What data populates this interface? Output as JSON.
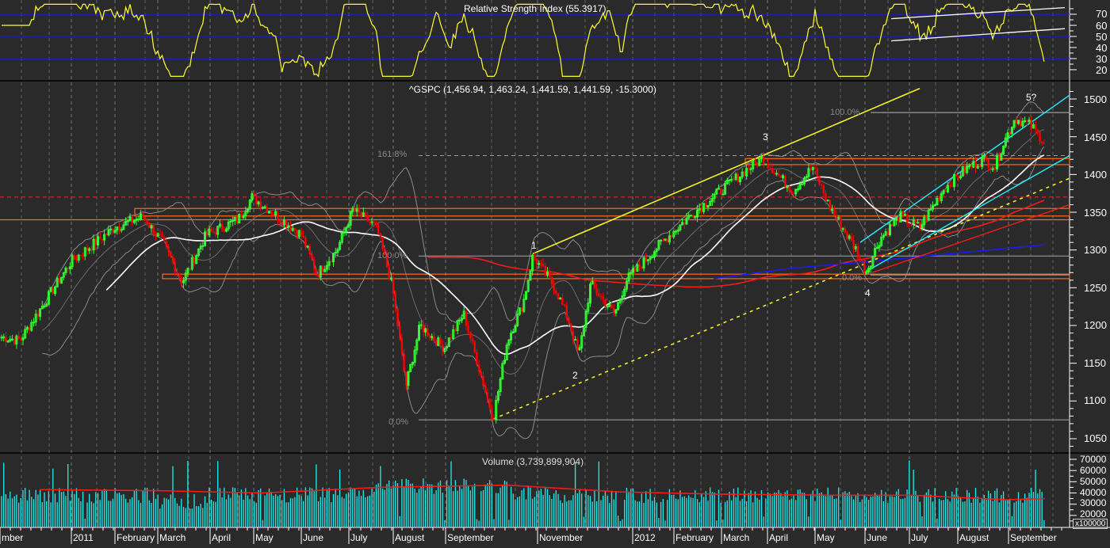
{
  "chart_data": [
    {
      "type": "line",
      "title": "Relative Strength Index (55.3917)",
      "indicator": "RSI",
      "current_value": 55.3917,
      "ylim": [
        12,
        80
      ],
      "yticks": [
        20,
        30,
        40,
        50,
        60,
        70
      ],
      "reference_lines": [
        {
          "value": 70,
          "color": "#0000cc"
        },
        {
          "value": 50,
          "color": "#0000cc"
        },
        {
          "value": 30,
          "color": "#0000cc"
        }
      ],
      "line_color": "#ffff33",
      "channel_lines_color": "#ffffff"
    },
    {
      "type": "candlestick",
      "title": "^GSPC (1,456.94, 1,463.24, 1,441.59, 1,441.59, -15.3000)",
      "symbol": "^GSPC",
      "last": {
        "open": 1456.94,
        "high": 1463.24,
        "low": 1441.59,
        "close": 1441.59,
        "change": -15.3
      },
      "ylim": [
        1030,
        1520
      ],
      "yticks": [
        1050,
        1100,
        1150,
        1200,
        1250,
        1300,
        1350,
        1400,
        1450,
        1500
      ],
      "up_color": "#33ff33",
      "down_color": "#ff0000",
      "overlays": [
        "Bollinger Bands (grey)",
        "50-day MA (white)",
        "200-day MA (red)",
        "blue MA"
      ],
      "fib_labels": [
        {
          "text": "161.8%",
          "price": 1425
        },
        {
          "text": "100.0%",
          "price": 1292
        },
        {
          "text": "0.0%",
          "price": 1075
        },
        {
          "text": "100.0%",
          "price": 1482
        },
        {
          "text": "0.0%",
          "price": 1267
        }
      ],
      "wave_labels": [
        {
          "text": "1",
          "approx_date": "Oct 2011",
          "price": 1300
        },
        {
          "text": "2",
          "approx_date": "Nov 2011",
          "price": 1155
        },
        {
          "text": "3",
          "approx_date": "Apr 2012",
          "price": 1430
        },
        {
          "text": "4",
          "approx_date": "Jun 2012",
          "price": 1260
        },
        {
          "text": "5?",
          "approx_date": "Sep 2012",
          "price": 1490
        }
      ],
      "horizontal_zones": [
        {
          "low": 1345,
          "high": 1355,
          "color": "#ff6a1a"
        },
        {
          "low": 1263,
          "high": 1268,
          "color": "#ff6a1a"
        },
        {
          "low": 1414,
          "high": 1421,
          "color": "#ff6a1a"
        },
        {
          "low": 1335,
          "high": 1340,
          "color": "#ff6a1a"
        }
      ],
      "dashed_lines": [
        {
          "price": 1370,
          "color": "#ff2222"
        },
        {
          "price": 1425,
          "color": "#999999"
        }
      ],
      "key_points": [
        {
          "date": "Feb 2011",
          "price": 1344
        },
        {
          "date": "Mar 2011",
          "price": 1256
        },
        {
          "date": "May 2011",
          "price": 1370
        },
        {
          "date": "Jun 2011",
          "price": 1265
        },
        {
          "date": "Jul 2011",
          "price": 1353
        },
        {
          "date": "Aug 2011",
          "price": 1101
        },
        {
          "date": "Oct 2011",
          "price": 1075
        },
        {
          "date": "Oct 2011",
          "price": 1292
        },
        {
          "date": "Nov 2011",
          "price": 1158
        },
        {
          "date": "Apr 2012",
          "price": 1422
        },
        {
          "date": "Jun 2012",
          "price": 1267
        },
        {
          "date": "Sep 2012",
          "price": 1474
        },
        {
          "date": "Sep 2012",
          "price": 1441.59
        }
      ]
    },
    {
      "type": "bar",
      "title": "Volume (3,739,899,904)",
      "current_value": 3739899904,
      "ylim": [
        10000,
        75000
      ],
      "yticks": [
        20000,
        30000,
        40000,
        50000,
        60000,
        70000
      ],
      "multiplier_label": "x100000",
      "bar_color": "#22eeee",
      "ma_color": "#ff0000"
    }
  ],
  "rsi": {
    "title": "Relative Strength Index (55.3917)",
    "ticks": [
      "70",
      "60",
      "50",
      "40",
      "30",
      "20"
    ]
  },
  "price": {
    "title": "^GSPC (1,456.94, 1,463.24, 1,441.59, 1,441.59, -15.3000)",
    "ticks": [
      "1500",
      "1450",
      "1400",
      "1350",
      "1300",
      "1250",
      "1200",
      "1150",
      "1100",
      "1050"
    ],
    "fib": [
      "161.8%",
      "100.0%",
      "0.0%",
      "100.0%",
      "0.0%"
    ],
    "waves": [
      "1",
      "2",
      "3",
      "4",
      "5?"
    ]
  },
  "volume": {
    "title": "Volume (3,739,899,904)",
    "ticks": [
      "70000",
      "60000",
      "50000",
      "40000",
      "30000",
      "20000"
    ],
    "multiplier": "x100000"
  },
  "x_axis": {
    "months": [
      "mber",
      "2011",
      "February",
      "March",
      "April",
      "May",
      "June",
      "July",
      "August",
      "September",
      "November",
      "2012",
      "February",
      "March",
      "April",
      "May",
      "June",
      "July",
      "August",
      "September"
    ]
  }
}
